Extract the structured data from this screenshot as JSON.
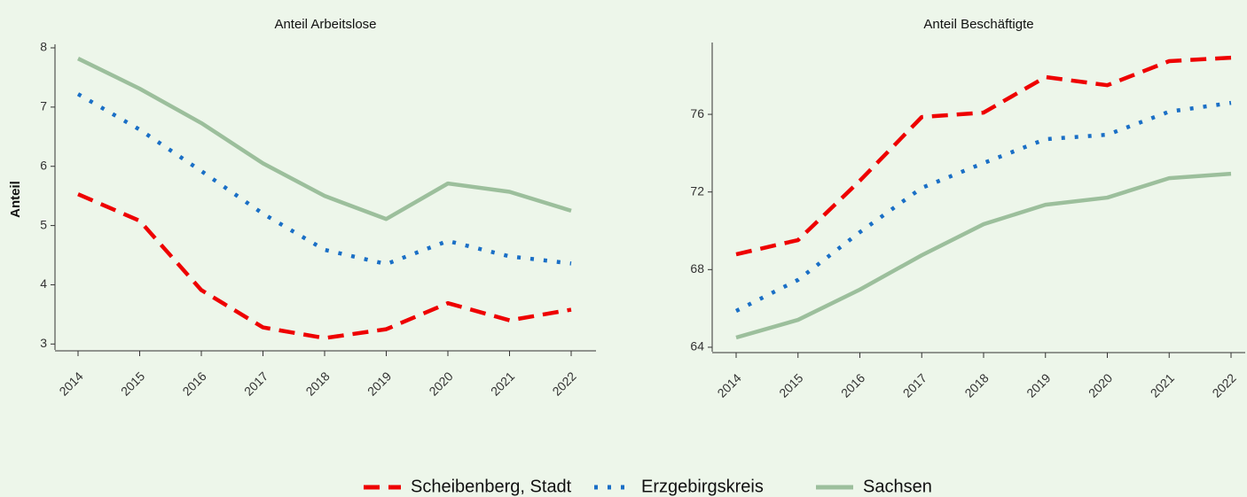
{
  "chart_data": [
    {
      "type": "line",
      "title": "Anteil Arbeitslose",
      "ylabel": "Anteil",
      "categories": [
        "2014",
        "2015",
        "2016",
        "2017",
        "2018",
        "2019",
        "2020",
        "2021",
        "2022"
      ],
      "ylim": [
        2.9,
        8.06
      ],
      "yticks": [
        3,
        4,
        5,
        6,
        7,
        8
      ],
      "series": [
        {
          "name": "Scheibenberg, Stadt",
          "color": "#ee0000",
          "dash": "18 10",
          "values": [
            5.53,
            5.08,
            3.91,
            3.28,
            3.1,
            3.25,
            3.69,
            3.4,
            3.58
          ]
        },
        {
          "name": "Erzgebirgskreis",
          "color": "#1a6fc6",
          "dash": "4 11",
          "values": [
            7.22,
            6.62,
            5.92,
            5.2,
            4.59,
            4.35,
            4.74,
            4.48,
            4.36
          ]
        },
        {
          "name": "Sachsen",
          "color": "#9cbf9c",
          "dash": "none",
          "values": [
            7.82,
            7.31,
            6.73,
            6.05,
            5.5,
            5.11,
            5.71,
            5.57,
            5.25
          ]
        }
      ]
    },
    {
      "type": "line",
      "title": "Anteil Beschäftigte",
      "categories": [
        "2014",
        "2015",
        "2016",
        "2017",
        "2018",
        "2019",
        "2020",
        "2021",
        "2022"
      ],
      "ylim": [
        63.77,
        79.7
      ],
      "yticks": [
        64,
        68,
        72,
        76
      ],
      "series": [
        {
          "values": [
            68.79,
            69.52,
            72.58,
            75.86,
            76.09,
            77.92,
            77.5,
            78.74,
            78.92
          ]
        },
        {
          "values": [
            65.87,
            67.47,
            69.93,
            72.21,
            73.49,
            74.72,
            74.95,
            76.14,
            76.59
          ]
        },
        {
          "values": [
            64.5,
            65.41,
            66.97,
            68.74,
            70.34,
            71.34,
            71.71,
            72.71,
            72.94
          ]
        }
      ]
    }
  ]
}
